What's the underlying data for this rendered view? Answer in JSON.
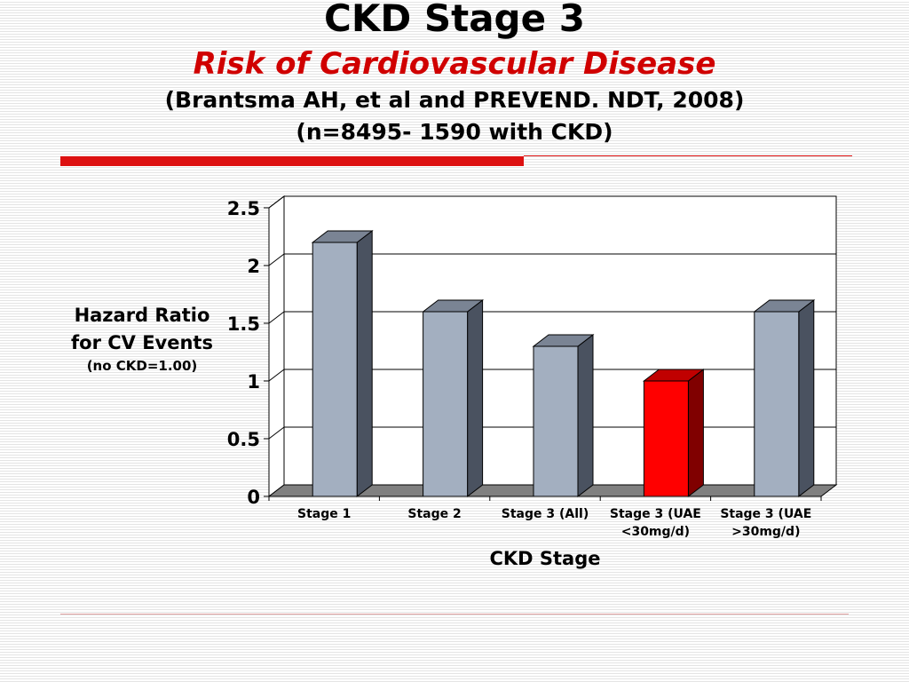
{
  "slide": {
    "title": "CKD Stage 3",
    "subtitle": "Risk of Cardiovascular Disease",
    "citation": "(Brantsma AH, et al and PREVEND. NDT, 2008)",
    "sample": "(n=8495- 1590 with CKD)"
  },
  "chart_data": {
    "type": "bar",
    "categories": [
      "Stage 1",
      "Stage 2",
      "Stage 3 (All)",
      "Stage 3 (UAE <30mg/d)",
      "Stage 3 (UAE >30mg/d)"
    ],
    "category_lines": [
      [
        "Stage 1"
      ],
      [
        "Stage 2"
      ],
      [
        "Stage 3 (All)"
      ],
      [
        "Stage 3 (UAE",
        "<30mg/d)"
      ],
      [
        "Stage 3 (UAE",
        ">30mg/d)"
      ]
    ],
    "values": [
      2.2,
      1.6,
      1.3,
      1.0,
      1.6
    ],
    "highlight_index": 3,
    "ylabel": "Hazard Ratio for CV Events",
    "ylabel_note": "(no CKD=1.00)",
    "xlabel": "CKD Stage",
    "ylim": [
      0,
      2.5
    ],
    "yticks": [
      0,
      0.5,
      1,
      1.5,
      2,
      2.5
    ],
    "ytick_labels": [
      "0",
      "0.5",
      "1",
      "1.5",
      "2",
      "2.5"
    ],
    "grid": true,
    "style": "3d-bar",
    "colors": {
      "bar_front": "#a3afc0",
      "bar_side": "#4a5260",
      "bar_top": "#7a8494",
      "highlight_front": "#ff0000",
      "highlight_side": "#800000",
      "highlight_top": "#c00000",
      "floor": "#808080"
    }
  },
  "colors": {
    "title": "#000000",
    "subtitle": "#d00000",
    "rule": "#dd1111"
  }
}
